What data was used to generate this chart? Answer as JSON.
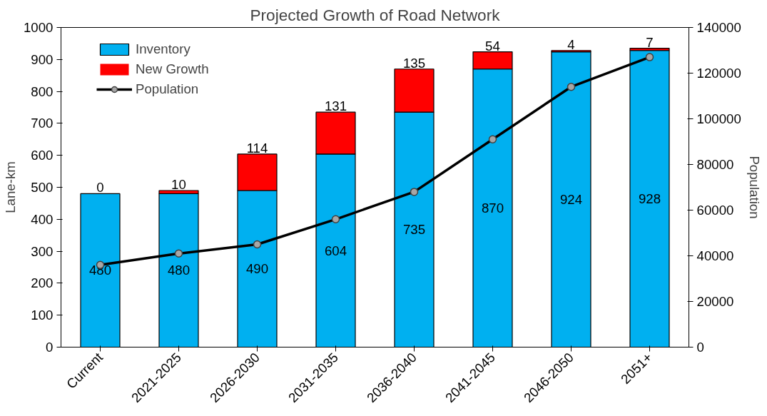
{
  "chart_data": {
    "type": "bar",
    "title": "Projected Growth of Road Network",
    "ylabel": "Lane-km",
    "y2label": "Population",
    "categories": [
      "Current",
      "2021-2025",
      "2026-2030",
      "2031-2035",
      "2036-2040",
      "2041-2045",
      "2046-2050",
      "2051+"
    ],
    "stacked": true,
    "legend": "top left",
    "grid": false,
    "ylim": [
      0,
      1000
    ],
    "yticks": [
      0,
      100,
      200,
      300,
      400,
      500,
      600,
      700,
      800,
      900,
      1000
    ],
    "y2lim": [
      0,
      140000
    ],
    "y2ticks": [
      0,
      20000,
      40000,
      60000,
      80000,
      100000,
      120000,
      140000
    ],
    "series": [
      {
        "name": "Inventory",
        "color": "#00b0f0",
        "values": [
          480,
          480,
          490,
          604,
          735,
          870,
          924,
          928
        ],
        "value_labels": [
          "480",
          "480",
          "490",
          "604",
          "735",
          "870",
          "924",
          "928"
        ]
      },
      {
        "name": "New Growth",
        "color": "#ff0000",
        "values": [
          0,
          10,
          114,
          131,
          135,
          54,
          4,
          7
        ],
        "value_labels": [
          "0",
          "10",
          "114",
          "131",
          "135",
          "54",
          "4",
          "7"
        ]
      },
      {
        "name": "Population",
        "type": "line",
        "axis": "y2",
        "color": "#000000",
        "marker": "circle",
        "values": [
          36000,
          41000,
          45000,
          56000,
          68000,
          91000,
          114000,
          127000
        ]
      }
    ]
  }
}
